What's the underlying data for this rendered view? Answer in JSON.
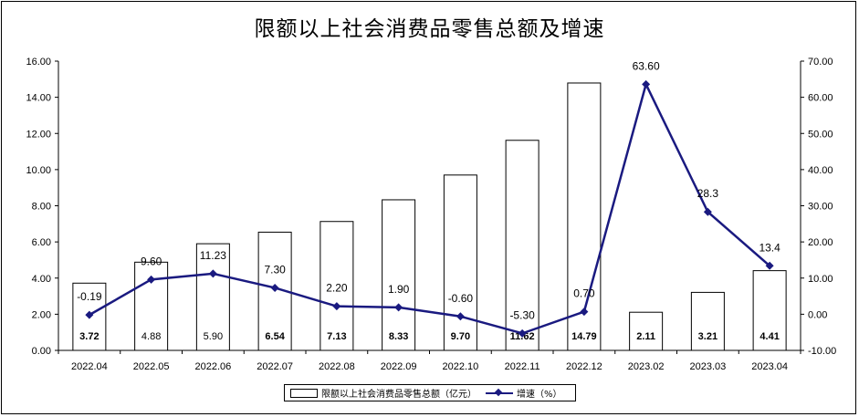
{
  "chart_data": {
    "type": "bar+line",
    "title": "限额以上社会消费品零售总额及增速",
    "categories": [
      "2022.04",
      "2022.05",
      "2022.06",
      "2022.07",
      "2022.08",
      "2022.09",
      "2022.10",
      "2022.11",
      "2022.12",
      "2023.02",
      "2023.03",
      "2023.04"
    ],
    "series": [
      {
        "name": "限额以上社会消费品零售总额（亿元）",
        "type": "bar",
        "axis": "left",
        "values": [
          3.72,
          4.88,
          5.9,
          6.54,
          7.13,
          8.33,
          9.7,
          11.62,
          14.79,
          2.11,
          3.21,
          4.41
        ],
        "labels": [
          "3.72",
          "4.88",
          "5.90",
          "6.54",
          "7.13",
          "8.33",
          "9.70",
          "11.62",
          "14.79",
          "2.11",
          "3.21",
          "4.41"
        ],
        "label_bold": [
          true,
          false,
          false,
          true,
          true,
          true,
          true,
          true,
          true,
          true,
          true,
          true
        ]
      },
      {
        "name": "增速（%）",
        "type": "line",
        "axis": "right",
        "values": [
          -0.19,
          9.6,
          11.23,
          7.3,
          2.2,
          1.9,
          -0.6,
          -5.3,
          0.7,
          63.6,
          28.3,
          13.4
        ],
        "labels": [
          "-0.19",
          "9.60",
          "11.23",
          "7.30",
          "2.20",
          "1.90",
          "-0.60",
          "-5.30",
          "0.70",
          "63.60",
          "28.3",
          "13.4"
        ]
      }
    ],
    "y_left": {
      "min": 0,
      "max": 16,
      "ticks": [
        "0.00",
        "2.00",
        "4.00",
        "6.00",
        "8.00",
        "10.00",
        "12.00",
        "14.00",
        "16.00"
      ]
    },
    "y_right": {
      "min": -10,
      "max": 70,
      "ticks": [
        "-10.00",
        "0.00",
        "10.00",
        "20.00",
        "30.00",
        "40.00",
        "50.00",
        "60.00",
        "70.00"
      ]
    },
    "line_color": "#1a1a80",
    "bar_fill": "#ffffff",
    "bar_stroke": "#000000",
    "legend_position": "bottom",
    "grid": false
  }
}
